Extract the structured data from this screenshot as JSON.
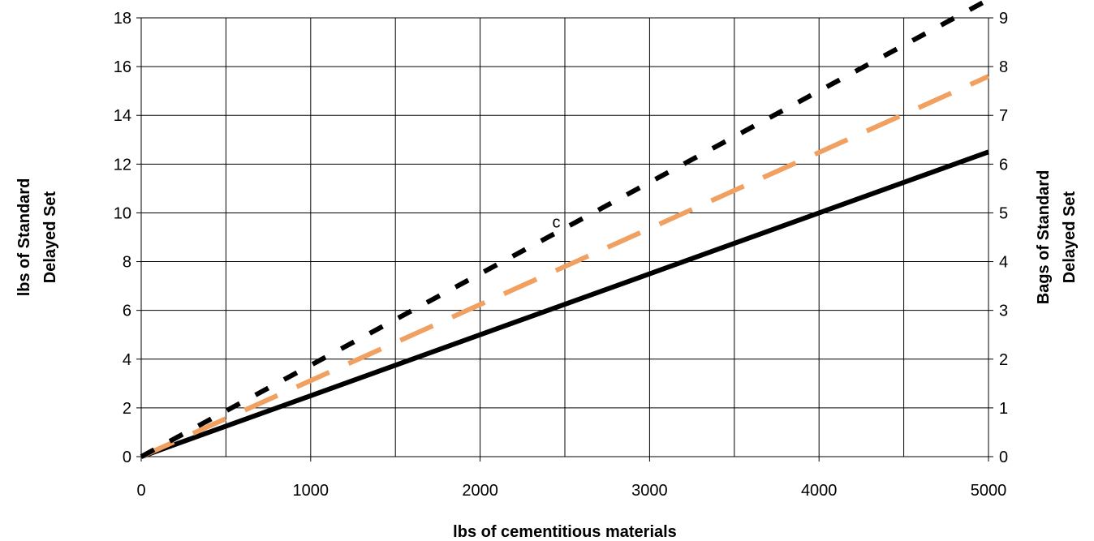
{
  "chart_data": {
    "type": "line",
    "xlabel": "lbs of cementitious materials",
    "ylabel_left": [
      "lbs of Standard",
      "Delayed Set"
    ],
    "ylabel_right": [
      "Bags of Standard",
      "Delayed Set"
    ],
    "xlim": [
      0,
      5000
    ],
    "ylim_left": [
      0,
      18
    ],
    "ylim_right": [
      0,
      9
    ],
    "x_ticks": [
      "0",
      "1000",
      "2000",
      "3000",
      "4000",
      "5000"
    ],
    "y_ticks_left": [
      "0",
      "2",
      "4",
      "6",
      "8",
      "10",
      "12",
      "14",
      "16",
      "18"
    ],
    "y_ticks_right": [
      "0",
      "1",
      "2",
      "3",
      "4",
      "5",
      "6",
      "7",
      "8",
      "9"
    ],
    "grid": true,
    "x_grid_step": 500,
    "series": [
      {
        "values_x": [
          0,
          5000
        ],
        "values_y": [
          0,
          12.5
        ],
        "color": "#000000",
        "style": "solid"
      },
      {
        "values_x": [
          0,
          5000
        ],
        "values_y": [
          0,
          15.6
        ],
        "color": "#f0a060",
        "style": "long-dash"
      },
      {
        "values_x": [
          0,
          5000
        ],
        "values_y": [
          0,
          18.75
        ],
        "color": "#000000",
        "style": "dash"
      }
    ],
    "annotations": [
      {
        "text": "c",
        "x": 2450,
        "y": 9.4
      }
    ]
  }
}
